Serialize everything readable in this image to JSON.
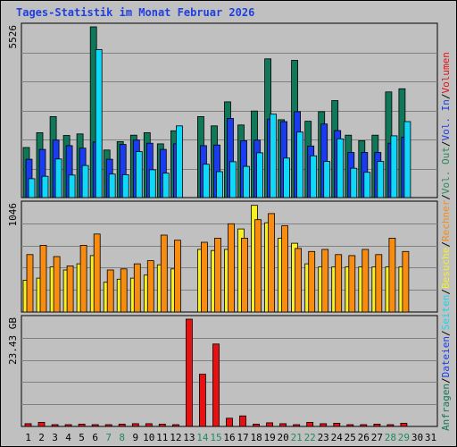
{
  "title": "Tages-Statistik im Monat Februar 2026",
  "colors": {
    "outer_bg": "#c0c0c0",
    "panel_bg": "#c0c0c0",
    "border": "#000000",
    "grid": "#808080",
    "title": "#1f3fe0",
    "anfragen": "#107858",
    "dateien": "#1a3cf0",
    "seiten": "#10d8f8",
    "besuche": "#f8f020",
    "rechner": "#f88c10",
    "vol_out": "#2a8a5a",
    "vol_in": "#1a3cf0",
    "volumen": "#e81010",
    "weekday_label": "#000000",
    "weekend_label": "#1f8a5a",
    "separator": "#000000"
  },
  "right_legend": {
    "top": [
      {
        "text": "Anfragen",
        "color_key": "anfragen"
      },
      {
        "text": "/",
        "color_key": "separator"
      },
      {
        "text": "Dateien",
        "color_key": "dateien"
      },
      {
        "text": "/",
        "color_key": "separator"
      },
      {
        "text": "Seiten",
        "color_key": "seiten"
      },
      {
        "text": "/",
        "color_key": "separator"
      },
      {
        "text": "Besuche",
        "color_key": "besuche"
      },
      {
        "text": "/",
        "color_key": "separator"
      },
      {
        "text": "Rechner",
        "color_key": "rechner"
      },
      {
        "text": "/",
        "color_key": "separator"
      },
      {
        "text": "Vol. Out",
        "color_key": "vol_out"
      },
      {
        "text": "/",
        "color_key": "separator"
      },
      {
        "text": "Vol. In",
        "color_key": "vol_in"
      },
      {
        "text": "/",
        "color_key": "separator"
      },
      {
        "text": "Volumen",
        "color_key": "volumen"
      }
    ]
  },
  "chart_data": [
    {
      "type": "bar",
      "panel": "anfragen-dateien-seiten",
      "ymax_label": "5526",
      "ymax": 5526,
      "categories": [
        "1",
        "2",
        "3",
        "4",
        "5",
        "6",
        "7",
        "8",
        "9",
        "10",
        "11",
        "12",
        "13",
        "14",
        "15",
        "16",
        "17",
        "18",
        "19",
        "20",
        "21",
        "22",
        "23",
        "24",
        "25",
        "26",
        "27",
        "28",
        "29",
        "30",
        "31"
      ],
      "series": [
        {
          "name": "Anfragen",
          "values": [
            1620,
            2100,
            2620,
            2010,
            2060,
            5526,
            1540,
            1810,
            2020,
            2100,
            1740,
            2160,
            0,
            2620,
            2320,
            3100,
            2350,
            2800,
            4490,
            2520,
            4440,
            2470,
            2780,
            3140,
            2020,
            1840,
            2020,
            3420,
            3520,
            0,
            0
          ]
        },
        {
          "name": "Dateien",
          "values": [
            1240,
            1560,
            1860,
            1680,
            1600,
            1800,
            1240,
            1720,
            1860,
            1760,
            1560,
            1740,
            0,
            1680,
            1700,
            2560,
            1840,
            1860,
            2540,
            2460,
            2780,
            1670,
            2380,
            2170,
            1460,
            1460,
            1460,
            1760,
            1960,
            0,
            0
          ]
        },
        {
          "name": "Seiten",
          "values": [
            610,
            690,
            1250,
            730,
            1040,
            4790,
            760,
            740,
            1490,
            900,
            790,
            2320,
            0,
            1080,
            840,
            1160,
            1010,
            1450,
            2700,
            1280,
            2120,
            1350,
            1170,
            1900,
            950,
            820,
            1170,
            2000,
            2460,
            0,
            0
          ]
        }
      ],
      "grid": true
    },
    {
      "type": "bar",
      "panel": "besuche-rechner",
      "ymax_label": "1046",
      "ymax": 1046,
      "categories": [
        "1",
        "2",
        "3",
        "4",
        "5",
        "6",
        "7",
        "8",
        "9",
        "10",
        "11",
        "12",
        "13",
        "14",
        "15",
        "16",
        "17",
        "18",
        "19",
        "20",
        "21",
        "22",
        "23",
        "24",
        "25",
        "26",
        "27",
        "28",
        "29",
        "30",
        "31"
      ],
      "series": [
        {
          "name": "Besuche",
          "values": [
            310,
            330,
            440,
            410,
            470,
            550,
            290,
            320,
            330,
            360,
            460,
            420,
            0,
            610,
            600,
            610,
            810,
            1040,
            870,
            720,
            670,
            470,
            440,
            440,
            440,
            440,
            440,
            440,
            440,
            0,
            0
          ]
        },
        {
          "name": "Rechner",
          "values": [
            560,
            650,
            540,
            450,
            650,
            760,
            410,
            420,
            470,
            500,
            750,
            700,
            0,
            680,
            720,
            860,
            720,
            900,
            960,
            840,
            620,
            590,
            610,
            560,
            550,
            610,
            560,
            720,
            590,
            0,
            0
          ]
        }
      ],
      "grid": true
    },
    {
      "type": "bar",
      "panel": "volumen",
      "ymax_label": "23.43 GB",
      "ymax": 23.43,
      "categories": [
        "1",
        "2",
        "3",
        "4",
        "5",
        "6",
        "7",
        "8",
        "9",
        "10",
        "11",
        "12",
        "13",
        "14",
        "15",
        "16",
        "17",
        "18",
        "19",
        "20",
        "21",
        "22",
        "23",
        "24",
        "25",
        "26",
        "27",
        "28",
        "29",
        "30",
        "31"
      ],
      "series": [
        {
          "name": "Volumen",
          "values": [
            0.6,
            0.9,
            0.4,
            0.4,
            0.5,
            0.3,
            0.4,
            0.5,
            0.6,
            0.6,
            0.5,
            0.4,
            23.43,
            11.4,
            18.0,
            1.8,
            2.3,
            0.5,
            0.8,
            0.6,
            0.4,
            0.9,
            0.6,
            0.7,
            0.4,
            0.4,
            0.5,
            0.3,
            0.7,
            0,
            0
          ]
        }
      ],
      "grid": true
    }
  ],
  "day_label_weekend": [
    false,
    false,
    false,
    false,
    false,
    false,
    true,
    true,
    false,
    false,
    false,
    false,
    false,
    true,
    true,
    false,
    false,
    false,
    false,
    false,
    true,
    true,
    false,
    false,
    false,
    false,
    false,
    true,
    true,
    false,
    false
  ]
}
